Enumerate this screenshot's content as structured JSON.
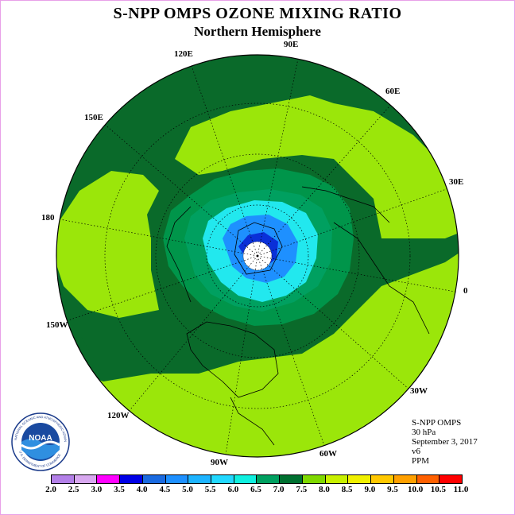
{
  "title": "S-NPP OMPS OZONE MIXING RATIO",
  "subtitle": "Northern Hemisphere",
  "lon_labels": {
    "e90": "90E",
    "e60": "60E",
    "e30": "30E",
    "e0": "0",
    "w30": "30W",
    "w60": "60W",
    "w90": "90W",
    "w120": "120W",
    "w150": "150W",
    "e180": "180",
    "e150": "150E",
    "e120": "120E"
  },
  "info": {
    "instrument": "S-NPP OMPS",
    "level": "30 hPa",
    "date": "September 3, 2017",
    "version": "v6",
    "units": "PPM"
  },
  "logo": {
    "label": "NOAA",
    "ring_text": "NATIONAL OCEANIC AND ATMOSPHERIC ADMINISTRATION",
    "ring_text_bottom": "U.S. DEPARTMENT OF COMMERCE"
  },
  "legend": {
    "ticks": [
      "2.0",
      "2.5",
      "3.0",
      "3.5",
      "4.0",
      "4.5",
      "5.0",
      "5.5",
      "6.0",
      "6.5",
      "7.0",
      "7.5",
      "8.0",
      "8.5",
      "9.0",
      "9.5",
      "10.0",
      "10.5",
      "11.0"
    ],
    "colors": [
      "#b380e8",
      "#d8a8f0",
      "#ff00ff",
      "#0000e6",
      "#1a6ae0",
      "#1e90ff",
      "#1eb4ff",
      "#22d8ff",
      "#10f0e0",
      "#00a060",
      "#007030",
      "#7fd800",
      "#c8f000",
      "#f0f000",
      "#ffc800",
      "#ffa000",
      "#ff6000",
      "#ff0000",
      "#a0522d"
    ]
  },
  "map": {
    "outer_color": "#9be60a",
    "band_color": "#0a6a2a",
    "ring_color": "#00954a",
    "inner_color": "#00a060",
    "cyan_color": "#22e8ee",
    "blue_color": "#1e90ff",
    "deep_blue_color": "#0a30d8"
  }
}
